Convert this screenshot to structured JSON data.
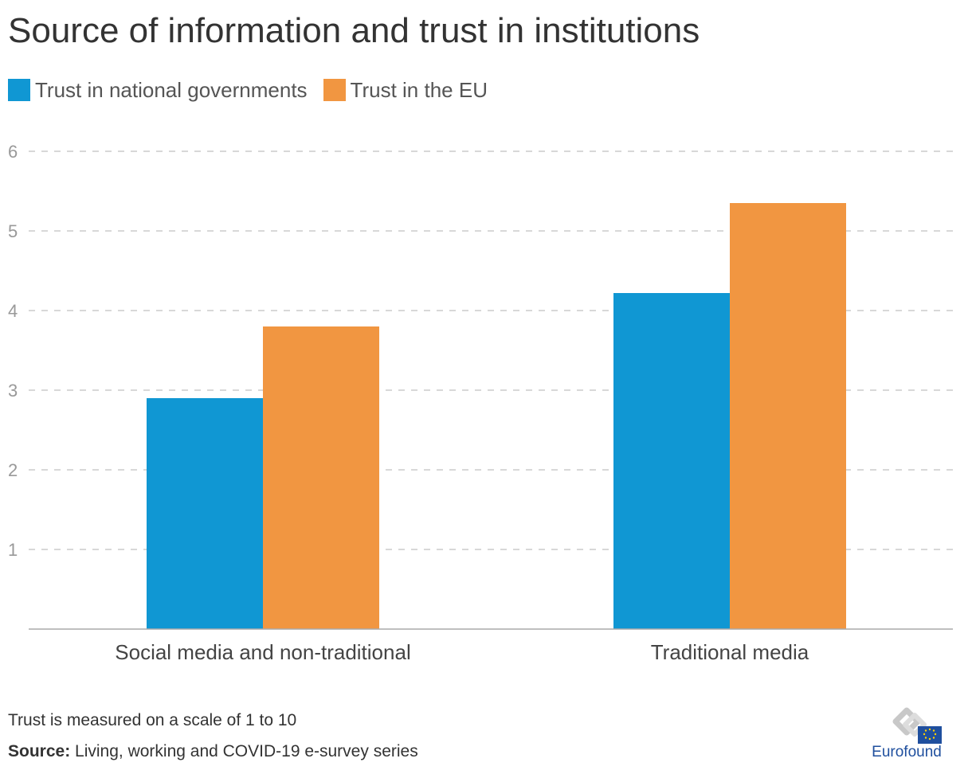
{
  "title": "Source of information and trust in institutions",
  "note": "Trust is measured on a scale of 1 to 10",
  "source": {
    "label": "Source:",
    "text": "Living, working and COVID-19 e-survey series"
  },
  "logo": {
    "text": "Eurofound"
  },
  "colors": {
    "national": "#1097d3",
    "eu": "#f19641",
    "grid": "#cccccc",
    "axis": "#aaaaaa",
    "tick_label": "#999999",
    "category_label": "#444444"
  },
  "chart_data": {
    "type": "bar",
    "categories": [
      "Social media and non-traditional",
      "Traditional media"
    ],
    "series": [
      {
        "name": "Trust in national governments",
        "values": [
          2.9,
          4.22
        ]
      },
      {
        "name": "Trust in the EU",
        "values": [
          3.8,
          5.35
        ]
      }
    ],
    "ylim": [
      0,
      6
    ],
    "yticks": [
      "1",
      "2",
      "3",
      "4",
      "5",
      "6"
    ],
    "grid": true,
    "legend_position": "top-left"
  }
}
